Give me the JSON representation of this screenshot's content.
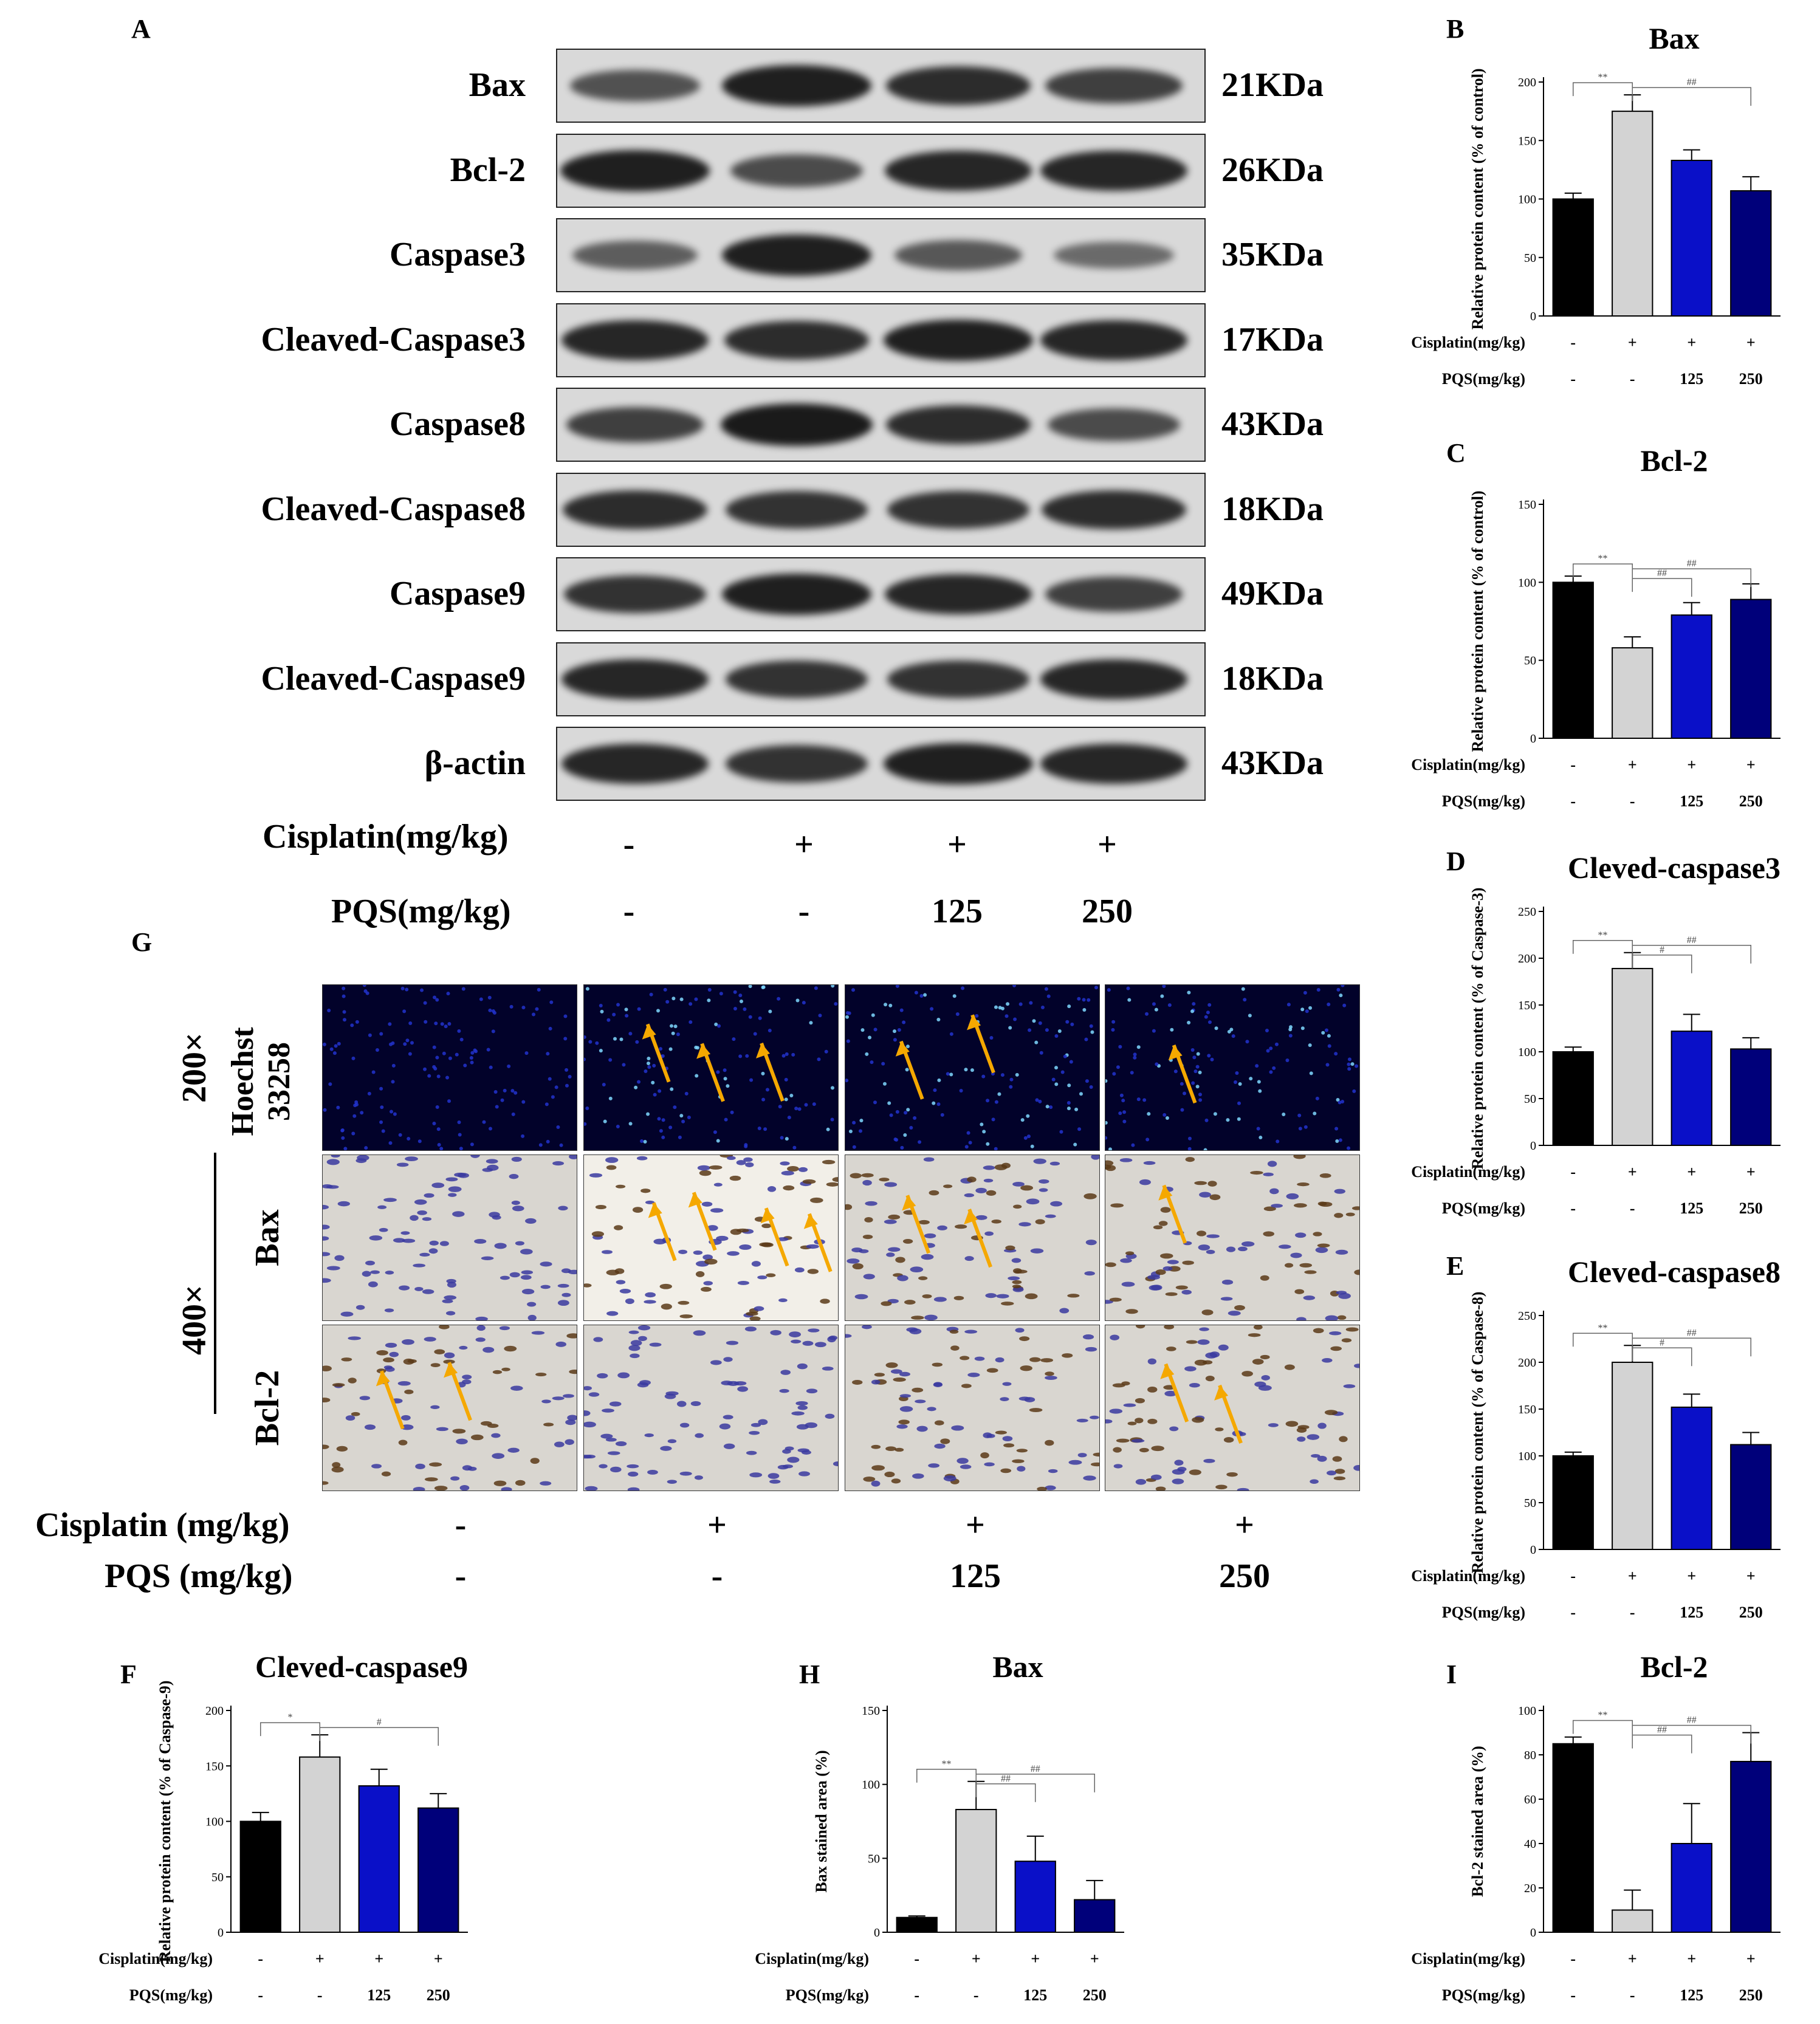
{
  "panel_labels": {
    "A": "A",
    "B": "B",
    "C": "C",
    "D": "D",
    "E": "E",
    "F": "F",
    "G": "G",
    "H": "H",
    "I": "I"
  },
  "western_blot": {
    "proteins": [
      {
        "name": "Bax",
        "kda": "21KDa",
        "intensity": [
          0.55,
          0.95,
          0.85,
          0.7
        ]
      },
      {
        "name": "Bcl-2",
        "kda": "26KDa",
        "intensity": [
          0.95,
          0.6,
          0.9,
          0.9
        ]
      },
      {
        "name": "Caspase3",
        "kda": "35KDa",
        "intensity": [
          0.45,
          0.95,
          0.5,
          0.35
        ]
      },
      {
        "name": "Cleaved-Caspase3",
        "kda": "17KDa",
        "intensity": [
          0.9,
          0.85,
          0.95,
          0.9
        ]
      },
      {
        "name": "Caspase8",
        "kda": "43KDa",
        "intensity": [
          0.7,
          1.0,
          0.85,
          0.6
        ]
      },
      {
        "name": "Cleaved-Caspase8",
        "kda": "18KDa",
        "intensity": [
          0.85,
          0.8,
          0.8,
          0.85
        ]
      },
      {
        "name": "Caspase9",
        "kda": "49KDa",
        "intensity": [
          0.8,
          0.95,
          0.9,
          0.7
        ]
      },
      {
        "name": "Cleaved-Caspase9",
        "kda": "18KDa",
        "intensity": [
          0.9,
          0.8,
          0.8,
          0.9
        ]
      },
      {
        "name": "β-actin",
        "kda": "43KDa",
        "intensity": [
          0.9,
          0.8,
          0.95,
          0.9
        ]
      }
    ],
    "cisplatin_label": "Cisplatin(mg/kg)",
    "pqs_label": "PQS(mg/kg)",
    "cisplatin_values": [
      "-",
      "+",
      "+",
      "+"
    ],
    "pqs_values": [
      "-",
      "-",
      "125",
      "250"
    ]
  },
  "micrographs": {
    "mag_top": "200×",
    "mag_bottom": "400×",
    "row_labels": [
      "Hoechst 33258",
      "Bax",
      "Bcl-2"
    ],
    "cisplatin_label": "Cisplatin (mg/kg)",
    "pqs_label": "PQS (mg/kg)",
    "cisplatin_values": [
      "-",
      "+",
      "+",
      "+"
    ],
    "pqs_values": [
      "-",
      "-",
      "125",
      "250"
    ]
  },
  "colors": {
    "control": "#000000",
    "cisplatin": "#d3d3d3",
    "pqs125": "#0a10c8",
    "pqs250": "#00007a",
    "arrow": "#f5a800"
  },
  "chart_data": [
    {
      "type": "bar",
      "panel": "B",
      "title": "Bax",
      "ylabel": "Relative protein content (% of control)",
      "ylim": [
        0,
        200
      ],
      "yticks": [
        0,
        50,
        100,
        150,
        200
      ],
      "values": [
        100,
        175,
        133,
        107
      ],
      "errors": [
        5,
        14,
        9,
        12
      ],
      "sig": [
        "**",
        "##"
      ],
      "cisplatin_label": "Cisplatin(mg/kg)",
      "pqs_label": "PQS(mg/kg)",
      "cisplatin_values": [
        "-",
        "+",
        "+",
        "+"
      ],
      "pqs_values": [
        "-",
        "-",
        "125",
        "250"
      ]
    },
    {
      "type": "bar",
      "panel": "C",
      "title": "Bcl-2",
      "ylabel": "Relative protein content (% of control)",
      "ylim": [
        0,
        150
      ],
      "yticks": [
        0,
        50,
        100,
        150
      ],
      "values": [
        100,
        58,
        79,
        89
      ],
      "errors": [
        4,
        7,
        8,
        10
      ],
      "sig": [
        "**",
        "##",
        "##"
      ],
      "cisplatin_label": "Cisplatin(mg/kg)",
      "pqs_label": "PQS(mg/kg)",
      "cisplatin_values": [
        "-",
        "+",
        "+",
        "+"
      ],
      "pqs_values": [
        "-",
        "-",
        "125",
        "250"
      ]
    },
    {
      "type": "bar",
      "panel": "D",
      "title": "Cleved-caspase3",
      "ylabel": "Relative protein content (% of Caspase-3)",
      "ylim": [
        0,
        250
      ],
      "yticks": [
        0,
        50,
        100,
        150,
        200,
        250
      ],
      "values": [
        100,
        189,
        122,
        103
      ],
      "errors": [
        5,
        17,
        18,
        12
      ],
      "sig": [
        "**",
        "#",
        "##"
      ],
      "cisplatin_label": "Cisplatin(mg/kg)",
      "pqs_label": "PQS(mg/kg)",
      "cisplatin_values": [
        "-",
        "+",
        "+",
        "+"
      ],
      "pqs_values": [
        "-",
        "-",
        "125",
        "250"
      ]
    },
    {
      "type": "bar",
      "panel": "E",
      "title": "Cleved-caspase8",
      "ylabel": "Relative protein content (% of Caspase-8)",
      "ylim": [
        0,
        250
      ],
      "yticks": [
        0,
        50,
        100,
        150,
        200,
        250
      ],
      "values": [
        100,
        200,
        152,
        112
      ],
      "errors": [
        4,
        18,
        14,
        13
      ],
      "sig": [
        "**",
        "#",
        "##"
      ],
      "cisplatin_label": "Cisplatin(mg/kg)",
      "pqs_label": "PQS(mg/kg)",
      "cisplatin_values": [
        "-",
        "+",
        "+",
        "+"
      ],
      "pqs_values": [
        "-",
        "-",
        "125",
        "250"
      ]
    },
    {
      "type": "bar",
      "panel": "F",
      "title": "Cleved-caspase9",
      "ylabel": "Relative protein content (% of Caspase-9)",
      "ylim": [
        0,
        200
      ],
      "yticks": [
        0,
        50,
        100,
        150,
        200
      ],
      "values": [
        100,
        158,
        132,
        112
      ],
      "errors": [
        8,
        20,
        15,
        13
      ],
      "sig": [
        "*",
        "#"
      ],
      "cisplatin_label": "Cisplatin(mg/kg)",
      "pqs_label": "PQS(mg/kg)",
      "cisplatin_values": [
        "-",
        "+",
        "+",
        "+"
      ],
      "pqs_values": [
        "-",
        "-",
        "125",
        "250"
      ]
    },
    {
      "type": "bar",
      "panel": "H",
      "title": "Bax",
      "ylabel": "Bax stained area (%)",
      "ylim": [
        0,
        150
      ],
      "yticks": [
        0,
        50,
        100,
        150
      ],
      "values": [
        10,
        83,
        48,
        22
      ],
      "errors": [
        1,
        19,
        17,
        13
      ],
      "sig": [
        "**",
        "##",
        "##"
      ],
      "cisplatin_label": "Cisplatin(mg/kg)",
      "pqs_label": "PQS(mg/kg)",
      "cisplatin_values": [
        "-",
        "+",
        "+",
        "+"
      ],
      "pqs_values": [
        "-",
        "-",
        "125",
        "250"
      ]
    },
    {
      "type": "bar",
      "panel": "I",
      "title": "Bcl-2",
      "ylabel": "Bcl-2 stained area (%)",
      "ylim": [
        0,
        100
      ],
      "yticks": [
        0,
        20,
        40,
        60,
        80,
        100
      ],
      "values": [
        85,
        10,
        40,
        77
      ],
      "errors": [
        3,
        9,
        18,
        13
      ],
      "sig": [
        "**",
        "##",
        "##"
      ],
      "cisplatin_label": "Cisplatin(mg/kg)",
      "pqs_label": "PQS(mg/kg)",
      "cisplatin_values": [
        "-",
        "+",
        "+",
        "+"
      ],
      "pqs_values": [
        "-",
        "-",
        "125",
        "250"
      ]
    }
  ]
}
